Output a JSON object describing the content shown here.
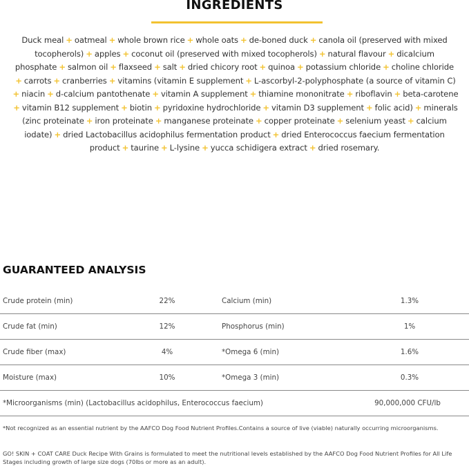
{
  "ingredients": {
    "title": "INGREDIENTS",
    "accent_color": "#f2c230",
    "separator": "+",
    "lines": [
      [
        "Duck meal",
        "oatmeal",
        "whole brown rice",
        "whole oats",
        "de-boned duck",
        "canola oil (preserved with mixed"
      ],
      [
        "tocopherols)",
        "apples",
        "coconut oil (preserved with mixed tocopherols)",
        "natural flavour",
        "dicalcium"
      ],
      [
        "phosphate",
        "salmon oil",
        "flaxseed",
        "salt",
        "dried chicory root",
        "quinoa",
        "potassium chloride",
        "choline chloride"
      ],
      [
        "",
        "carrots",
        "cranberries",
        "vitamins (vitamin E supplement",
        "L-ascorbyl-2-polyphosphate (a source of vitamin C)"
      ],
      [
        "",
        "niacin",
        "d-calcium pantothenate",
        "vitamin A supplement",
        "thiamine mononitrate",
        "riboflavin",
        "beta-carotene"
      ],
      [
        "",
        "vitamin B12 supplement",
        "biotin",
        "pyridoxine hydrochloride",
        "vitamin D3 supplement",
        "folic acid)",
        "minerals"
      ],
      [
        "(zinc proteinate",
        "iron proteinate",
        "manganese proteinate",
        "copper proteinate",
        "selenium yeast",
        "calcium"
      ],
      [
        "iodate)",
        "dried Lactobacillus acidophilus fermentation product",
        "dried Enterococcus faecium fermentation"
      ],
      [
        "product",
        "taurine",
        "L-lysine",
        "yucca schidigera extract",
        "dried rosemary."
      ]
    ]
  },
  "analysis": {
    "title": "GUARANTEED ANALYSIS",
    "rows": [
      {
        "label1": "Crude protein (min)",
        "value1": "22%",
        "label2": "Calcium (min)",
        "value2": "1.3%"
      },
      {
        "label1": "Crude fat (min)",
        "value1": "12%",
        "label2": "Phosphorus (min)",
        "value2": "1%"
      },
      {
        "label1": "Crude fiber (max)",
        "value1": "4%",
        "label2": "*Omega 6 (min)",
        "value2": "1.6%"
      },
      {
        "label1": "Moisture (max)",
        "value1": "10%",
        "label2": "*Omega 3 (min)",
        "value2": "0.3%"
      }
    ],
    "micro": {
      "label": "*Microorganisms (min) (Lactobacillus acidophilus, Enterococcus faecium)",
      "value": "90,000,000 CFU/lb"
    }
  },
  "footnote": "*Not recognized as an essential nutrient by the AAFCO Dog Food Nutrient Profiles.Contains a source of live (viable) naturally occurring microorganisms.",
  "statement": "GO! SKIN + COAT CARE Duck Recipe With Grains is formulated to meet the nutritional levels established by the AAFCO Dog Food Nutrient Profiles for All Life Stages including growth of large size dogs (70lbs or more as an adult)."
}
